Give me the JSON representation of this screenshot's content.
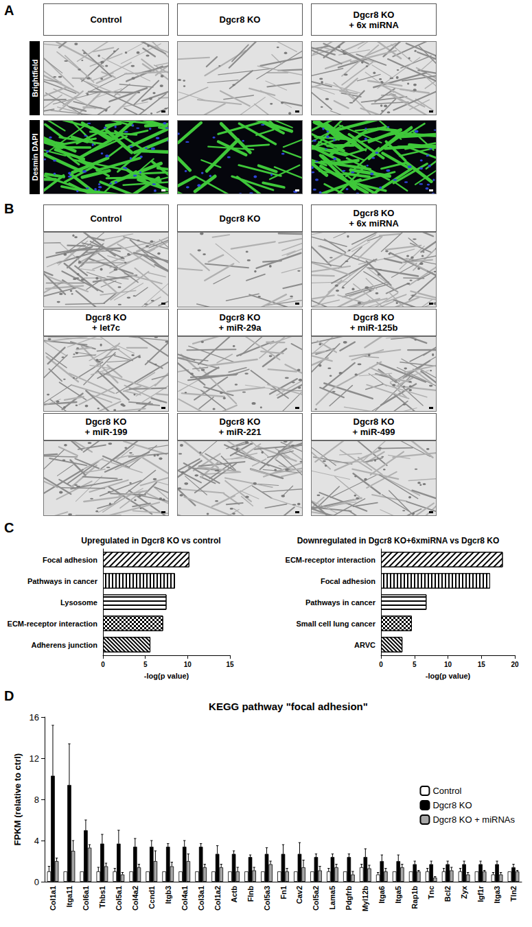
{
  "panels": {
    "A": {
      "label": "A",
      "columns": [
        "Control",
        "Dgcr8 KO",
        "Dgcr8 KO\n+ 6x miRNA"
      ],
      "rows": [
        "Brightfield",
        "Desmin DAPI"
      ]
    },
    "B": {
      "label": "B",
      "columns": [
        "Control",
        "Dgcr8 KO",
        "Dgcr8 KO\n+ 6x miRNA",
        "Dgcr8 KO\n+ let7c",
        "Dgcr8 KO\n+ miR-29a",
        "Dgcr8 KO\n+ miR-125b",
        "Dgcr8 KO\n+ miR-199",
        "Dgcr8 KO\n+ miR-221",
        "Dgcr8 KO\n+ miR-499"
      ]
    },
    "C": {
      "label": "C"
    },
    "D": {
      "label": "D"
    }
  },
  "chart_data": [
    {
      "type": "bar",
      "orientation": "horizontal",
      "title": "Upregulated in Dgcr8 KO vs control",
      "categories": [
        "Focal adhesion",
        "Pathways in cancer",
        "Lysosome",
        "ECM-receptor interaction",
        "Adherens junction"
      ],
      "values": [
        10.2,
        8.5,
        7.5,
        7.1,
        5.6
      ],
      "color": "#ffffff",
      "x_label": "-log(p value)",
      "xlim": [
        0,
        15
      ],
      "xticks": [
        0,
        5,
        10,
        15
      ],
      "grid": false
    },
    {
      "type": "bar",
      "orientation": "horizontal",
      "title": "Downregulated in Dgcr8 KO+6xmiRNA vs Dgcr8 KO",
      "categories": [
        "ECM-receptor interaction",
        "Focal adhesion",
        "Pathways in cancer",
        "Small cell lung cancer",
        "ARVC"
      ],
      "values": [
        18.2,
        16.3,
        6.8,
        4.6,
        3.2
      ],
      "color": "#ffffff",
      "x_label": "-log(p value)",
      "xlim": [
        0,
        20
      ],
      "xticks": [
        0,
        5,
        10,
        15,
        20
      ],
      "grid": false
    },
    {
      "type": "bar",
      "title": "KEGG pathway \"focal adhesion\"",
      "y_label": "FPKM (relative to ctrl)",
      "categories": [
        "Col1a1",
        "Itga11",
        "Col6a1",
        "Thbs1",
        "Col5a1",
        "Col4a2",
        "Ccnd1",
        "Itgb3",
        "Col4a1",
        "Col3a1",
        "Col1a2",
        "Actb",
        "Flnb",
        "Col5a3",
        "Fn1",
        "Cav2",
        "Col5a2",
        "Lama5",
        "Pdgfrb",
        "Myl12b",
        "Itga6",
        "Itga5",
        "Rap1b",
        "Tnc",
        "Bcl2",
        "Zyx",
        "Igf1r",
        "Itga3",
        "Tln2"
      ],
      "ylim": [
        0,
        16
      ],
      "yticks": [
        0,
        4,
        8,
        12,
        16
      ],
      "grid": false,
      "legend": "right",
      "series": [
        {
          "name": "Control",
          "color": "#ffffff",
          "values": [
            1,
            1,
            1,
            1,
            1,
            1,
            1,
            1,
            1,
            1,
            1,
            1,
            1,
            1,
            1,
            1,
            1,
            1,
            1,
            1.4,
            0.7,
            1,
            1,
            1,
            1,
            1,
            1,
            0.7,
            1
          ],
          "errors": [
            0.5,
            0,
            0,
            0.4,
            0.3,
            0,
            0,
            0,
            0,
            0,
            0,
            0,
            0,
            0,
            0,
            0,
            0,
            0.3,
            0,
            0.3,
            0.2,
            0,
            0,
            0.3,
            0.3,
            0.3,
            0,
            0.2,
            0
          ]
        },
        {
          "name": "Dgcr8 KO",
          "color": "#000000",
          "values": [
            10.3,
            9.4,
            5.0,
            3.7,
            3.7,
            3.4,
            3.4,
            3.4,
            3.4,
            3.4,
            2.7,
            2.7,
            2.4,
            2.7,
            2.7,
            2.7,
            2.4,
            2.4,
            2.4,
            2.4,
            2.0,
            2.0,
            1.7,
            1.7,
            1.7,
            1.7,
            1.7,
            1.7,
            1.4
          ],
          "errors": [
            4.9,
            4.0,
            1.0,
            0.9,
            1.3,
            0.8,
            0.6,
            0.3,
            0.6,
            0.3,
            0.8,
            0.3,
            0.2,
            0.6,
            0.9,
            1.1,
            0.3,
            0.3,
            0.3,
            0.8,
            0.6,
            0.6,
            0.3,
            0.3,
            0.3,
            0.3,
            0.3,
            0.3,
            0.3
          ]
        },
        {
          "name": "Dgcr8 KO + miRNAs",
          "color": "#a6a6a6",
          "values": [
            2.0,
            3.0,
            3.3,
            1.5,
            0.7,
            1.4,
            2.0,
            1.5,
            2.0,
            1.4,
            1.4,
            1.0,
            1.1,
            1.7,
            1.0,
            1.4,
            1.1,
            1.4,
            0.7,
            1.3,
            1.0,
            1.4,
            1.0,
            0.4,
            1.1,
            0.7,
            1.0,
            0.7,
            1.0
          ],
          "errors": [
            0.3,
            1.0,
            0.3,
            0.3,
            0.2,
            0.3,
            1.0,
            0.4,
            0.7,
            0.3,
            0.3,
            0.4,
            0.3,
            0.3,
            0.3,
            0.7,
            0.4,
            0.3,
            0.3,
            0.3,
            0.3,
            0.3,
            0.1,
            0.1,
            0.3,
            0.2,
            0.1,
            0.2,
            0.1
          ]
        }
      ]
    }
  ]
}
